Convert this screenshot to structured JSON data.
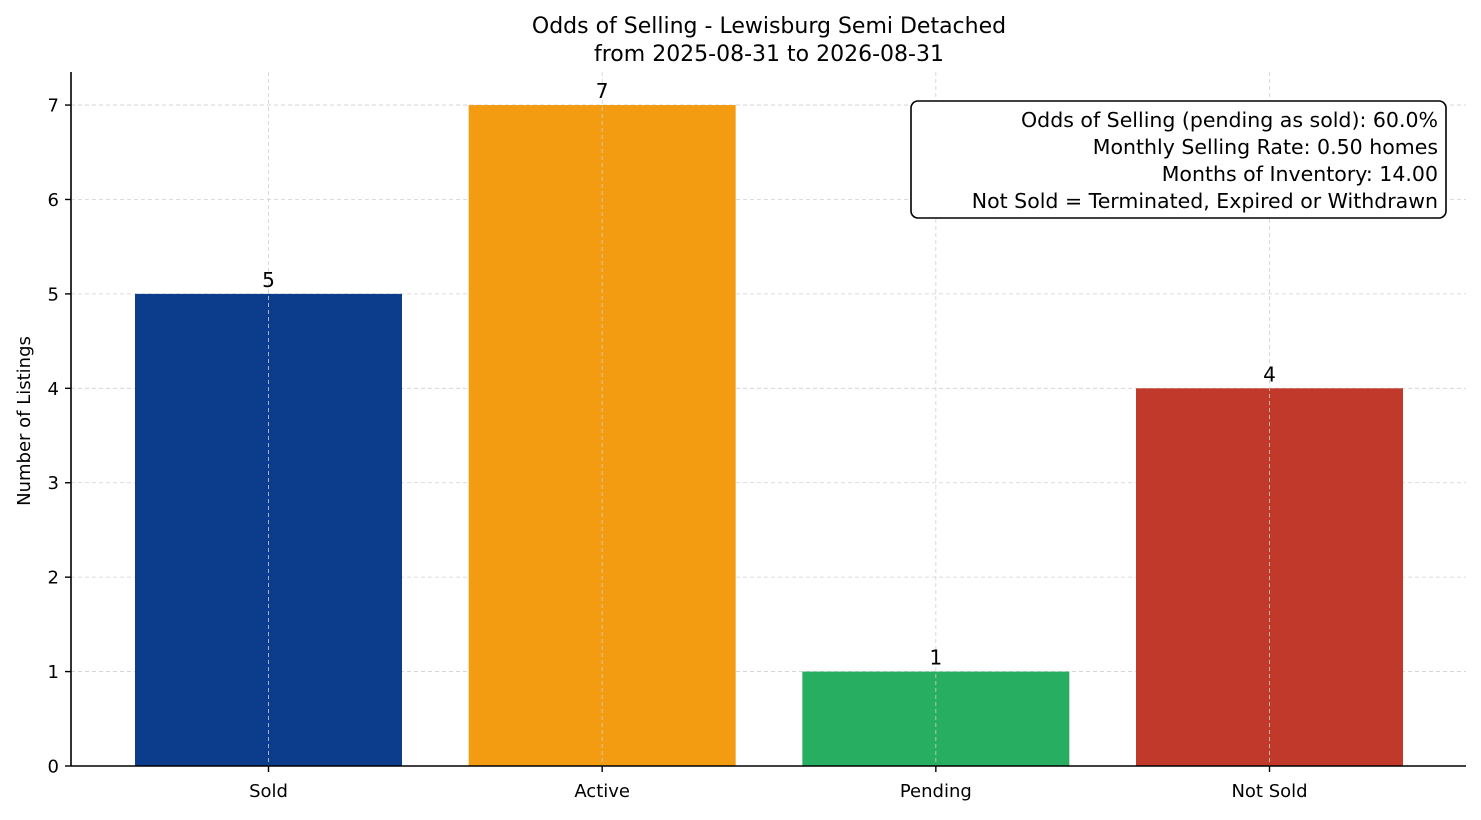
{
  "chart_data": {
    "type": "bar",
    "title": "Odds of Selling - Lewisburg Semi Detached",
    "subtitle": "from 2025-08-31 to 2026-08-31",
    "xlabel": "",
    "ylabel": "Number of Listings",
    "categories": [
      "Sold",
      "Active",
      "Pending",
      "Not Sold"
    ],
    "values": [
      5,
      7,
      1,
      4
    ],
    "data_labels": [
      "5",
      "7",
      "1",
      "4"
    ],
    "colors": [
      "#0b3d8c",
      "#f39c12",
      "#27ae60",
      "#c0392b"
    ],
    "ylim": [
      0,
      7.35
    ],
    "yticks": [
      0,
      1,
      2,
      3,
      4,
      5,
      6,
      7
    ],
    "grid": true,
    "legend": "none",
    "annotation_box": {
      "placement": "top-right",
      "lines": [
        "Odds of Selling (pending as sold): 60.0%",
        "Monthly Selling Rate: 0.50 homes",
        "Months of Inventory: 14.00",
        "Not Sold = Terminated, Expired or Withdrawn"
      ]
    }
  }
}
